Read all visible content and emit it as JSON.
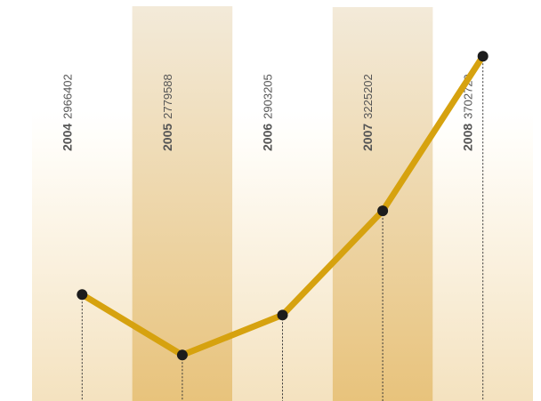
{
  "colors": {
    "line": "#d6a20f",
    "marker": "#1c1c1c",
    "band_dark_bottom": "#e8c37c",
    "band_dark_top": "#f3ead9",
    "band_light_bottom": "#f4e2bf",
    "band_light_top": "#fffdf8",
    "dashed": "#333333",
    "label": "#555555"
  },
  "chart_data": {
    "type": "line",
    "title": "",
    "xlabel": "",
    "ylabel": "",
    "categories": [
      "2004",
      "2005",
      "2006",
      "2007",
      "2008"
    ],
    "values": [
      2966402,
      2779588,
      2903205,
      3225202,
      3702729
    ],
    "value_labels": [
      "2966402",
      "2779588",
      "2903205",
      "3225202",
      "3702729"
    ],
    "grid": false,
    "legend": "none",
    "ylim": [
      2720000,
      3720000
    ]
  }
}
